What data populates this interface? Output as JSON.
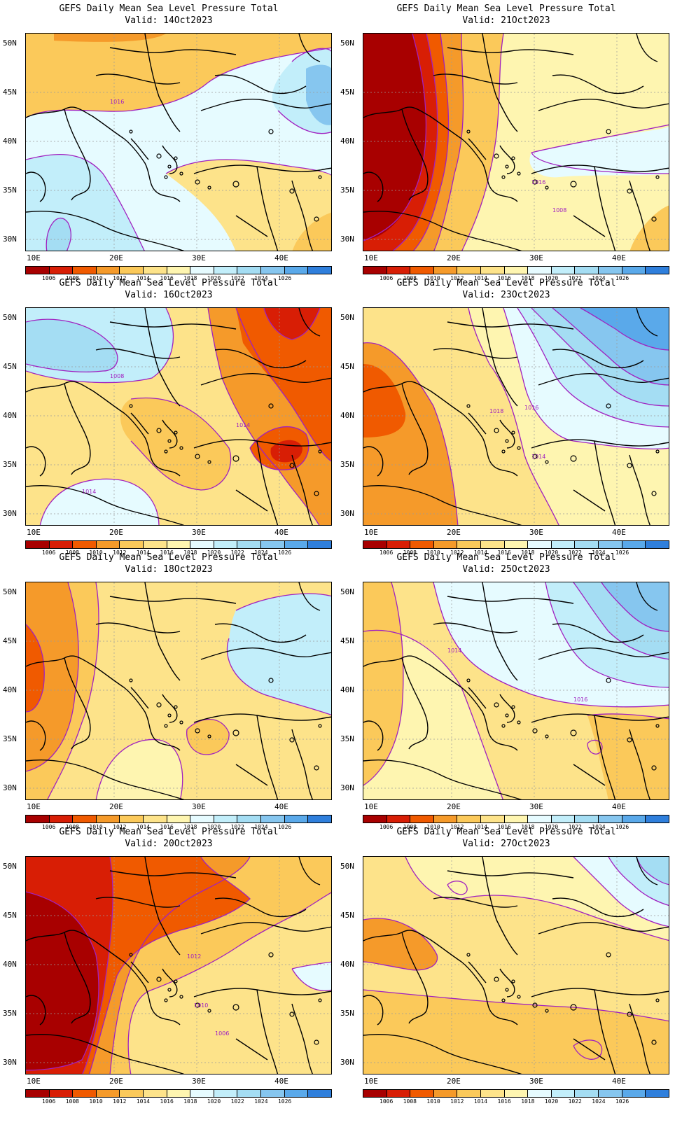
{
  "title_line1": "GEFS Daily Mean Sea Level Pressure Total",
  "lat_labels": [
    "50N",
    "45N",
    "40N",
    "35N",
    "30N"
  ],
  "lon_labels": [
    "10E",
    "20E",
    "30E",
    "40E"
  ],
  "colorbar": {
    "colors": [
      "#a80000",
      "#d81e05",
      "#f05a00",
      "#f59a2a",
      "#fbc95a",
      "#fde38a",
      "#fef5b0",
      "#e6fbff",
      "#c2eefa",
      "#a4ddf3",
      "#86c6ef",
      "#5aa9ea",
      "#2f7fdc"
    ],
    "labels": [
      "1006",
      "1008",
      "1010",
      "1012",
      "1014",
      "1016",
      "1018",
      "1020",
      "1022",
      "1024",
      "1026"
    ]
  },
  "panels": [
    {
      "valid": "Valid: 14Oct2023",
      "contour_labels": [
        "1016"
      ]
    },
    {
      "valid": "Valid: 21Oct2023",
      "contour_labels": [
        "1016",
        "1008"
      ]
    },
    {
      "valid": "Valid: 16Oct2023",
      "contour_labels": [
        "1014",
        "1014",
        "1008"
      ]
    },
    {
      "valid": "Valid: 23Oct2023",
      "contour_labels": [
        "1018",
        "1016",
        "1014"
      ]
    },
    {
      "valid": "Valid: 18Oct2023",
      "contour_labels": []
    },
    {
      "valid": "Valid: 25Oct2023",
      "contour_labels": [
        "1016",
        "1014"
      ]
    },
    {
      "valid": "Valid: 20Oct2023",
      "contour_labels": [
        "1012",
        "1010",
        "1006"
      ]
    },
    {
      "valid": "Valid: 27Oct2023",
      "contour_labels": []
    }
  ]
}
